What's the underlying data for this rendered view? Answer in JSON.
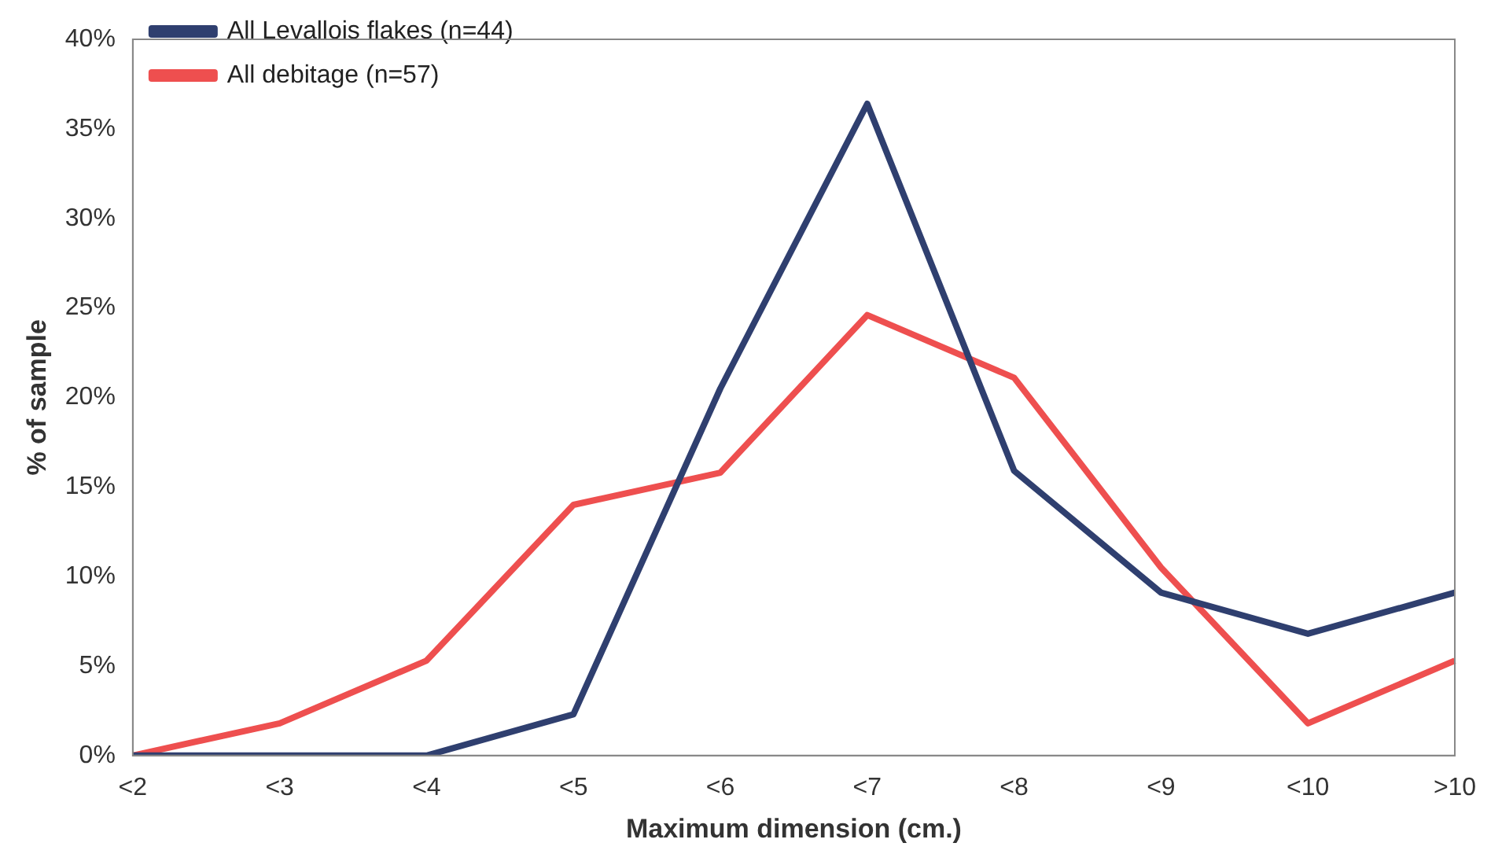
{
  "chart_data": {
    "type": "line",
    "xlabel": "Maximum dimension (cm.)",
    "ylabel": "% of sample",
    "categories": [
      "<2",
      "<3",
      "<4",
      "<5",
      "<6",
      "<7",
      "<8",
      "<9",
      "<10",
      ">10"
    ],
    "series": [
      {
        "name": "All Levallois flakes (n=44)",
        "color": "#2f3f6f",
        "values": [
          0,
          0,
          0,
          2.3,
          20.5,
          36.4,
          15.9,
          9.1,
          6.8,
          9.1
        ]
      },
      {
        "name": "All debitage (n=57)",
        "color": "#ee4f4f",
        "values": [
          0,
          1.8,
          5.3,
          14.0,
          15.8,
          24.6,
          21.1,
          10.5,
          1.8,
          5.3
        ]
      }
    ],
    "ylim": [
      0,
      40
    ],
    "yticks": [
      {
        "value": 0,
        "label": "0%"
      },
      {
        "value": 5,
        "label": "5%"
      },
      {
        "value": 10,
        "label": "10%"
      },
      {
        "value": 15,
        "label": "15%"
      },
      {
        "value": 20,
        "label": "20%"
      },
      {
        "value": 25,
        "label": "25%"
      },
      {
        "value": 30,
        "label": "30%"
      },
      {
        "value": 35,
        "label": "35%"
      },
      {
        "value": 40,
        "label": "40%"
      }
    ],
    "grid": false,
    "legend": "top left",
    "marker": "none",
    "line_style": "solid"
  }
}
